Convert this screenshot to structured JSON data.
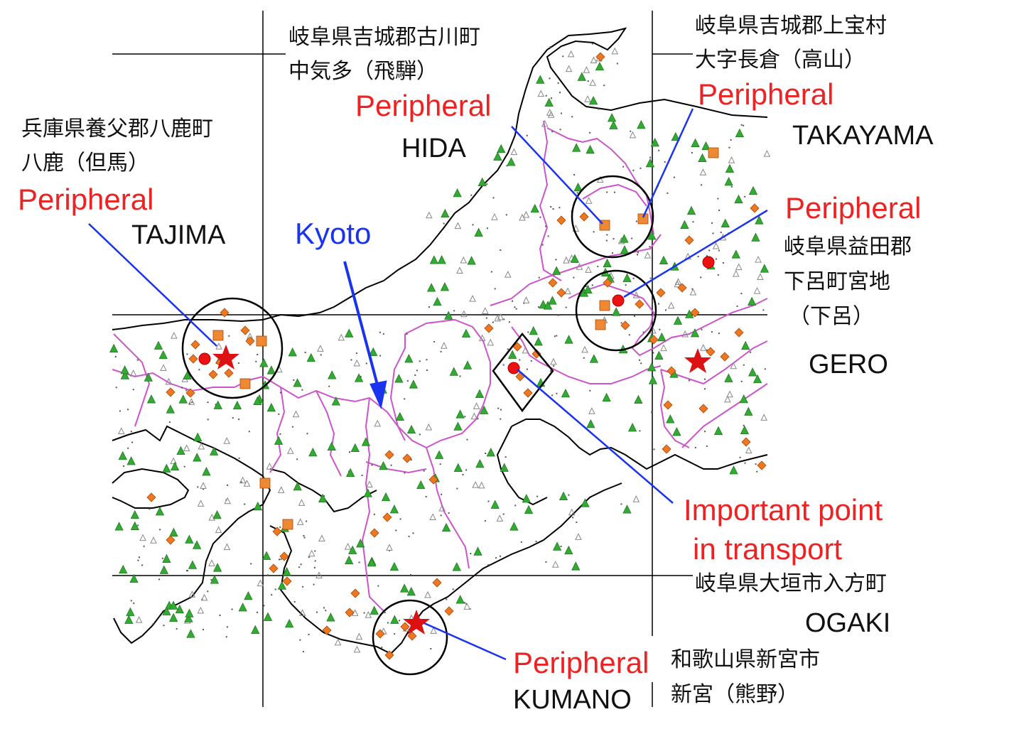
{
  "colors": {
    "coast": "#000000",
    "prefecture_border": "#cc55cc",
    "grid": "#000000",
    "triangle_green": "#33aa33",
    "triangle_gray": "#888888",
    "diamond_orange": "#ee7722",
    "square_orange": "#ee8833",
    "circle_red": "#ee1111",
    "star_red": "#dd1111",
    "arrow_blue": "#1a33ee",
    "label_red": "#ee2222"
  },
  "labels": {
    "hida_address_line1": "岐阜県吉城郡古川町",
    "hida_address_line2": "中気多（飛騨）",
    "hida_peripheral": "Peripheral",
    "hida_name": "HIDA",
    "takayama_address_line1": "岐阜県吉城郡上宝村",
    "takayama_address_line2": "大字長倉（高山）",
    "takayama_peripheral": "Peripheral",
    "takayama_name": "TAKAYAMA",
    "tajima_address_line1": "兵庫県養父郡八鹿町",
    "tajima_address_line2": "八鹿（但馬）",
    "tajima_peripheral": "Peripheral",
    "tajima_name": "TAJIMA",
    "kyoto_name": "Kyoto",
    "gero_peripheral": "Peripheral",
    "gero_address_line1": "岐阜県益田郡",
    "gero_address_line2": "下呂町宮地",
    "gero_address_line3": "（下呂）",
    "gero_name": "GERO",
    "important_line1": "Important point",
    "important_line2": "in transport",
    "ogaki_address": "岐阜県大垣市入方町",
    "ogaki_name": "OGAKI",
    "kumano_peripheral": "Peripheral",
    "kumano_name": "KUMANO",
    "kumano_address_line1": "和歌山県新宮市",
    "kumano_address_line2": "新宮（熊野）"
  }
}
